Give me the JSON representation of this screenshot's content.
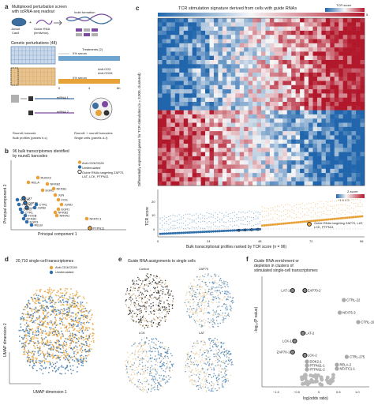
{
  "panels": {
    "a": {
      "label": "a",
      "title_line1": "Multiplexed perturbation screen",
      "title_line2": "with scRNA-seq readout",
      "jurkat": "Jurkat",
      "cas9": "Cas9",
      "guide": "Guide RNA",
      "lentivirus": "(lentivirus)",
      "indel": "Indel formation",
      "genetic": "Genetic perturbations (48)",
      "treatments": "Treatments (2)",
      "serum1": "0% serum",
      "anti_cd3": "Anti-CD3",
      "anti_cd28": "Anti-CD28",
      "serum2": "0% serum",
      "t0": "0",
      "t4": "4",
      "t8": "8h",
      "mrna1": "mRNA 1",
      "mrna2": "mRNA 2",
      "round1": "Round1 barcode",
      "bulk": "Bulk profiles (panels b,c)",
      "round12": "Round1 + round2 barcodes",
      "single": "Single cells (panels d–f)"
    },
    "b": {
      "label": "b",
      "title_line1": "96 bulk transcriptomes identified",
      "title_line2": "by round1 barcodes",
      "xlabel": "Principal component 1",
      "ylabel": "Principal component 2",
      "legend": [
        "Anti-CD3/CD28",
        "Unstimulated",
        "Guide RNAs targeting ZAP70, LAT, LCK, PTPN11"
      ],
      "genes": [
        "RELA",
        "RUNX2",
        "NFKB2",
        "EGR2",
        "NFKB1",
        "JUN",
        "FOS",
        "JUND",
        "NFAT5",
        "PTPN6",
        "LAT",
        "ZAP70",
        "LCK",
        "DOK2",
        "CTRL",
        "FOSB",
        "EGR1",
        "NFKB2",
        "JUNB",
        "CTRL",
        "NR4A1",
        "NFATC1",
        "PTPN11",
        "NFKB1",
        "EGR3",
        "RELB"
      ]
    },
    "c": {
      "label": "c",
      "title": "TCR stimulation signature derived from cells with guide RNAs",
      "colorbar_title": "TCR score",
      "cb_min": "−5",
      "cb_max": "5",
      "ylabel": "Differentially expressed genes for TCR stimulation (n = 3,000, clustered)",
      "zscore_title": "Z-score",
      "z_ticks": "−1 0 1 2",
      "tcr_ylabel": "TCR score",
      "xlabel": "Bulk transcriptional profiles ranked by TCR score (n = 96)",
      "x_ticks": [
        "0",
        "24",
        "48",
        "72",
        "96"
      ],
      "y_ticks": [
        "0",
        "10",
        "20"
      ],
      "legend": "Guide RNAs targeting ZAP70, LAT, LCK, PTPN11"
    },
    "d": {
      "label": "d",
      "title": "20,710 single-cell transcriptomes",
      "xlabel": "UMAP dimension 1",
      "ylabel": "UMAP dimension 2",
      "legend": [
        "Anti-CD3/CD28",
        "Unstimulated"
      ]
    },
    "e": {
      "label": "e",
      "title": "Guide RNA assignments to single cells",
      "sub": [
        "Control",
        "ZAP70",
        "LCK",
        "LAT"
      ]
    },
    "f": {
      "label": "f",
      "title_line1": "Guide RNA enrichment or",
      "title_line2": "depletion in clusters of",
      "title_line3": "stimulated single-cell transcriptomes",
      "xlabel": "log(odds ratio)",
      "ylabel": "−log₁₀(P value)",
      "x_ticks": [
        "−1.0",
        "−0.5",
        "0",
        "0.5",
        "1.0"
      ],
      "points": [
        "LAT-1",
        "ZAP70-2",
        "CTRL-22",
        "NFAT5-3",
        "CTRL-196",
        "LAT-2",
        "LCK-1",
        "ZAP70-1",
        "LCK-2",
        "CTRL-275",
        "DOK2-1",
        "PTPN11-1",
        "PTPN11-2",
        "RELA-2",
        "NFATC1-1"
      ]
    }
  },
  "colors": {
    "orange": "#e8a23a",
    "blue": "#2f6ea8",
    "heat_red": "#b2182b",
    "heat_blue": "#2166ac"
  }
}
